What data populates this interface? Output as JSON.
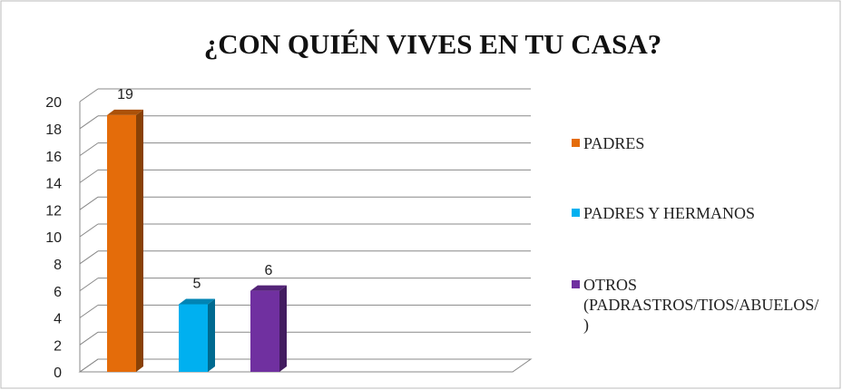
{
  "chart_data": {
    "type": "bar3d",
    "title": "¿CON QUIÉN VIVES EN TU CASA?",
    "series": [
      {
        "name": "PADRES",
        "color": "#e46c0a",
        "values": [
          19
        ]
      },
      {
        "name": "PADRES Y HERMANOS",
        "color": "#00b0f0",
        "values": [
          5
        ]
      },
      {
        "name": "OTROS (PADRASTROS/TIOS/ABUELOS/)",
        "color": "#7030a0",
        "values": [
          6
        ]
      }
    ],
    "ylim": [
      0,
      20
    ],
    "yticks": [
      0,
      2,
      4,
      6,
      8,
      10,
      12,
      14,
      16,
      18,
      20
    ],
    "grid": true,
    "legend": "right"
  }
}
